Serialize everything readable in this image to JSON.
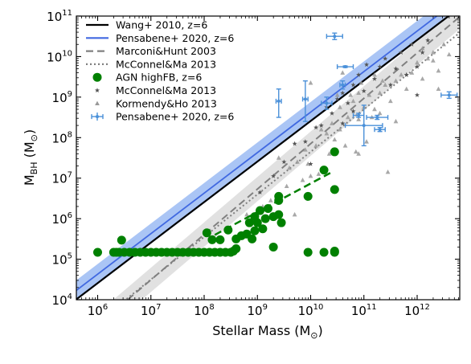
{
  "chart_data": {
    "type": "scatter",
    "x_scale": "log",
    "y_scale": "log",
    "xlabel_main": "Stellar Mass (M",
    "xlabel_sub": "⊙",
    "xlabel_close": ")",
    "ylabel_main": "M",
    "ylabel_sub": "BH",
    "ylabel_paren_open": " (M",
    "ylabel_paren_sub": "⊙",
    "ylabel_paren_close": ")",
    "xlim_log": [
      5.6,
      12.8
    ],
    "ylim_log": [
      4,
      11
    ],
    "x_ticks": [
      {
        "exp": 6,
        "base": "10",
        "sup": "6"
      },
      {
        "exp": 7,
        "base": "10",
        "sup": "7"
      },
      {
        "exp": 8,
        "base": "10",
        "sup": "8"
      },
      {
        "exp": 9,
        "base": "10",
        "sup": "9"
      },
      {
        "exp": 10,
        "base": "10",
        "sup": "10"
      },
      {
        "exp": 11,
        "base": "10",
        "sup": "11"
      },
      {
        "exp": 12,
        "base": "10",
        "sup": "12"
      }
    ],
    "y_ticks": [
      {
        "exp": 4,
        "base": "10",
        "sup": "4"
      },
      {
        "exp": 5,
        "base": "10",
        "sup": "5"
      },
      {
        "exp": 6,
        "base": "10",
        "sup": "6"
      },
      {
        "exp": 7,
        "base": "10",
        "sup": "7"
      },
      {
        "exp": 8,
        "base": "10",
        "sup": "8"
      },
      {
        "exp": 9,
        "base": "10",
        "sup": "9"
      },
      {
        "exp": 10,
        "base": "10",
        "sup": "10"
      },
      {
        "exp": 11,
        "base": "10",
        "sup": "11"
      }
    ],
    "legend_position": "upper-left",
    "legend": [
      {
        "label": "Wang+ 2010, z=6",
        "kind": "line",
        "color": "#000000",
        "dash": "none"
      },
      {
        "label": "Pensabene+ 2020, z=6",
        "kind": "line",
        "color": "#4169e1",
        "dash": "none"
      },
      {
        "label": "Marconi&Hunt 2003",
        "kind": "line",
        "color": "#808080",
        "dash": "9,5"
      },
      {
        "label": "McConnel&Ma 2013",
        "kind": "line",
        "color": "#808080",
        "dash": "2,3"
      },
      {
        "label": "AGN highFB, z=6",
        "kind": "circle",
        "color": "#008000"
      },
      {
        "label": "McConnel&Ma 2013",
        "kind": "star",
        "color": "#555555"
      },
      {
        "label": "Kormendy&Ho 2013",
        "kind": "triangle",
        "color": "#999999"
      },
      {
        "label": "Pensabene+ 2020, z=6",
        "kind": "errorbar",
        "color": "#4a90d9"
      }
    ],
    "relations": [
      {
        "name": "Wang+ 2010, z=6",
        "color": "#000000",
        "slope": 1.0,
        "intercept": -1.59,
        "dash": "none",
        "width": 2.2
      },
      {
        "name": "Pensabene+ 2020, z=6",
        "color": "#4169e1",
        "slope": 1.0,
        "intercept": -1.37,
        "dash": "none",
        "width": 1.8,
        "band": 0.25,
        "band_color": "#6495ed"
      },
      {
        "name": "Marconi&Hunt 2003",
        "color": "#808080",
        "slope": 1.12,
        "intercept": -3.35,
        "dash": "9,5",
        "width": 2.0,
        "band": 0.3,
        "band_color": "#c8c8c8"
      },
      {
        "name": "McConnel&Ma 2013",
        "color": "#808080",
        "slope": 1.05,
        "intercept": -2.85,
        "dash": "2,3",
        "width": 2.0
      }
    ],
    "agn_fit_line": {
      "color": "#008000",
      "x_log": [
        8.2,
        10.4
      ],
      "y_log": [
        5.6,
        7.15
      ],
      "dash": "9,5"
    },
    "series_agn": {
      "name": "AGN highFB, z=6",
      "color": "#008000",
      "points": [
        [
          6.0,
          5.17
        ],
        [
          6.3,
          5.17
        ],
        [
          6.35,
          5.17
        ],
        [
          6.4,
          5.17
        ],
        [
          6.45,
          5.47
        ],
        [
          6.5,
          5.17
        ],
        [
          6.6,
          5.17
        ],
        [
          6.7,
          5.17
        ],
        [
          6.8,
          5.17
        ],
        [
          6.9,
          5.17
        ],
        [
          7.0,
          5.17
        ],
        [
          7.1,
          5.17
        ],
        [
          7.2,
          5.17
        ],
        [
          7.3,
          5.17
        ],
        [
          7.4,
          5.17
        ],
        [
          7.5,
          5.17
        ],
        [
          7.6,
          5.17
        ],
        [
          7.7,
          5.17
        ],
        [
          7.8,
          5.17
        ],
        [
          7.9,
          5.17
        ],
        [
          8.0,
          5.17
        ],
        [
          8.1,
          5.17
        ],
        [
          8.2,
          5.17
        ],
        [
          8.3,
          5.17
        ],
        [
          8.4,
          5.17
        ],
        [
          8.5,
          5.17
        ],
        [
          8.55,
          5.2
        ],
        [
          8.6,
          5.26
        ],
        [
          8.05,
          5.65
        ],
        [
          8.15,
          5.48
        ],
        [
          8.3,
          5.48
        ],
        [
          8.45,
          5.72
        ],
        [
          8.6,
          5.5
        ],
        [
          8.7,
          5.58
        ],
        [
          8.8,
          5.62
        ],
        [
          8.9,
          5.5
        ],
        [
          8.95,
          5.7
        ],
        [
          8.85,
          5.9
        ],
        [
          8.95,
          6.05
        ],
        [
          9.0,
          5.9
        ],
        [
          9.05,
          6.2
        ],
        [
          9.1,
          5.75
        ],
        [
          9.15,
          6.0
        ],
        [
          9.2,
          6.25
        ],
        [
          9.3,
          6.05
        ],
        [
          9.3,
          5.3
        ],
        [
          9.4,
          6.1
        ],
        [
          9.45,
          5.9
        ],
        [
          9.4,
          6.45
        ],
        [
          9.4,
          6.55
        ],
        [
          9.95,
          6.55
        ],
        [
          10.25,
          7.2
        ],
        [
          10.45,
          7.65
        ],
        [
          10.45,
          6.72
        ],
        [
          9.95,
          5.17
        ],
        [
          10.25,
          5.17
        ],
        [
          10.45,
          5.17
        ],
        [
          10.45,
          5.2
        ]
      ]
    },
    "series_mcconnell": {
      "name": "McConnel&Ma 2013",
      "color": "#555555",
      "points": [
        [
          9.05,
          6.65
        ],
        [
          9.3,
          7.05
        ],
        [
          9.5,
          7.4
        ],
        [
          9.7,
          7.85
        ],
        [
          9.9,
          7.9
        ],
        [
          10.1,
          8.25
        ],
        [
          10.2,
          8.3
        ],
        [
          10.3,
          8.75
        ],
        [
          10.4,
          8.6
        ],
        [
          10.5,
          8.95
        ],
        [
          10.6,
          9.1
        ],
        [
          10.7,
          8.85
        ],
        [
          10.8,
          9.3
        ],
        [
          10.9,
          9.55
        ],
        [
          11.0,
          9.15
        ],
        [
          11.05,
          9.8
        ],
        [
          11.2,
          9.45
        ],
        [
          11.3,
          9.75
        ],
        [
          11.4,
          9.95
        ],
        [
          11.5,
          9.3
        ],
        [
          11.6,
          9.7
        ],
        [
          11.7,
          10.1
        ],
        [
          11.8,
          9.55
        ],
        [
          11.9,
          10.3
        ],
        [
          12.0,
          9.75
        ],
        [
          12.1,
          10.1
        ],
        [
          12.2,
          10.4
        ],
        [
          12.0,
          9.05
        ],
        [
          11.8,
          9.55
        ],
        [
          10.8,
          8.65
        ],
        [
          10.6,
          8.35
        ],
        [
          10.0,
          7.35
        ]
      ]
    },
    "series_kormendy": {
      "name": "Kormendy&Ho 2013",
      "color": "#999999",
      "points": [
        [
          9.4,
          7.5
        ],
        [
          9.6,
          7.25
        ],
        [
          9.75,
          7.4
        ],
        [
          9.9,
          7.7
        ],
        [
          9.95,
          7.35
        ],
        [
          10.1,
          7.8
        ],
        [
          10.15,
          7.1
        ],
        [
          10.3,
          8.1
        ],
        [
          10.4,
          8.35
        ],
        [
          10.55,
          8.2
        ],
        [
          10.7,
          8.5
        ],
        [
          10.8,
          8.9
        ],
        [
          10.9,
          8.45
        ],
        [
          11.0,
          8.75
        ],
        [
          11.1,
          9.05
        ],
        [
          11.2,
          8.7
        ],
        [
          11.3,
          9.1
        ],
        [
          11.4,
          9.3
        ],
        [
          11.5,
          8.9
        ],
        [
          11.6,
          9.4
        ],
        [
          11.7,
          9.55
        ],
        [
          11.8,
          9.2
        ],
        [
          11.9,
          9.6
        ],
        [
          12.0,
          9.85
        ],
        [
          12.1,
          9.45
        ],
        [
          12.2,
          9.95
        ],
        [
          12.3,
          10.1
        ],
        [
          12.4,
          9.65
        ],
        [
          12.5,
          10.3
        ],
        [
          12.6,
          10.05
        ],
        [
          10.65,
          7.8
        ],
        [
          10.85,
          7.65
        ],
        [
          11.05,
          7.9
        ],
        [
          11.45,
          7.15
        ],
        [
          9.7,
          6.1
        ],
        [
          10.0,
          7.05
        ],
        [
          10.5,
          9.05
        ],
        [
          10.75,
          9.05
        ],
        [
          10.9,
          9.1
        ],
        [
          10.6,
          9.6
        ],
        [
          11.15,
          8.5
        ],
        [
          11.3,
          8.6
        ],
        [
          10.2,
          8.2
        ],
        [
          10.45,
          7.95
        ],
        [
          10.35,
          7.6
        ],
        [
          9.85,
          6.95
        ],
        [
          10.9,
          7.6
        ],
        [
          11.6,
          8.4
        ],
        [
          12.1,
          10.2
        ],
        [
          12.3,
          9.9
        ],
        [
          12.4,
          9.2
        ],
        [
          10.55,
          8.75
        ],
        [
          9.55,
          6.8
        ],
        [
          9.25,
          6.45
        ],
        [
          8.8,
          6.1
        ],
        [
          9.1,
          6.3
        ],
        [
          10.0,
          9.35
        ],
        [
          10.95,
          9.35
        ],
        [
          11.2,
          9.55
        ],
        [
          11.35,
          9.4
        ]
      ]
    },
    "series_pensabene": {
      "name": "Pensabene+ 2020, z=6",
      "color": "#4a90d9",
      "points": [
        {
          "x": 9.4,
          "y": 8.9,
          "xerr": 0.05,
          "ylo": 0.4,
          "yhi": 0.3
        },
        {
          "x": 9.9,
          "y": 8.95,
          "xerr": 0.05,
          "ylo": 0.55,
          "yhi": 0.45
        },
        {
          "x": 10.3,
          "y": 8.85,
          "xerr": 0.1,
          "ylo": 0.15,
          "yhi": 0.15
        },
        {
          "x": 10.45,
          "y": 10.5,
          "xerr": 0.15,
          "ylo": 0.08,
          "yhi": 0.08
        },
        {
          "x": 10.65,
          "y": 9.75,
          "xerr": 0.15,
          "ylo": 0.02,
          "yhi": 0.02
        },
        {
          "x": 10.6,
          "y": 9.3,
          "xerr": 0.05,
          "ylo": 0.1,
          "yhi": 0.1
        },
        {
          "x": 10.9,
          "y": 8.55,
          "xerr": 0.1,
          "ylo": 0.05,
          "yhi": 0.05
        },
        {
          "x": 11.0,
          "y": 8.3,
          "xerr": 0.35,
          "ylo": 0.5,
          "yhi": 0.5
        },
        {
          "x": 11.25,
          "y": 8.5,
          "xerr": 0.2,
          "ylo": 0.05,
          "yhi": 0.05
        },
        {
          "x": 11.3,
          "y": 8.2,
          "xerr": 0.1,
          "ylo": 0.05,
          "yhi": 0.05
        },
        {
          "x": 12.6,
          "y": 9.05,
          "xerr": 0.15,
          "ylo": 0.08,
          "yhi": 0.08
        }
      ]
    }
  }
}
